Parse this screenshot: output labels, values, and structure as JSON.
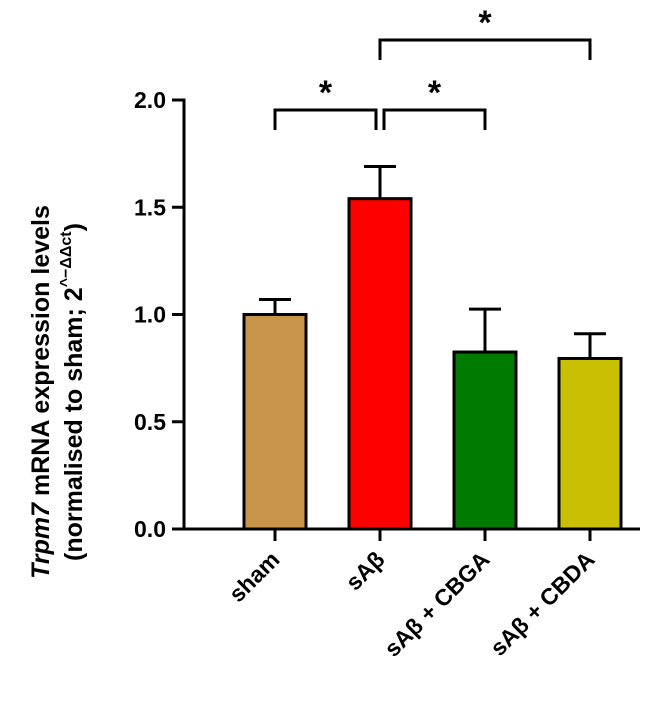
{
  "chart_data": {
    "type": "bar",
    "categories": [
      "sham",
      "sAβ",
      "sAβ + CBGA",
      "sAβ + CBDA"
    ],
    "values": [
      1.0,
      1.54,
      0.825,
      0.795
    ],
    "errors": [
      0.07,
      0.15,
      0.2,
      0.115
    ],
    "colors": [
      "#C8944A",
      "#FF0000",
      "#007A00",
      "#C8C000"
    ],
    "ylabel_line1_italic": "Trpm7",
    "ylabel_line1_rest": " mRNA expression levels",
    "ylabel_line2_main": "(normalised to sham; 2",
    "ylabel_line2_sup": "^−ΔΔct",
    "ylabel_line2_end": ")",
    "ylim": [
      0,
      2.0
    ],
    "yticks": [
      0.0,
      0.5,
      1.0,
      1.5,
      2.0
    ],
    "ytick_labels": [
      "0.0",
      "0.5",
      "1.0",
      "1.5",
      "2.0"
    ],
    "significance": [
      {
        "from": 0,
        "to": 1,
        "label": "*",
        "level": 0
      },
      {
        "from": 1,
        "to": 2,
        "label": "*",
        "level": 0
      },
      {
        "from": 1,
        "to": 3,
        "label": "*",
        "level": 1
      }
    ]
  }
}
